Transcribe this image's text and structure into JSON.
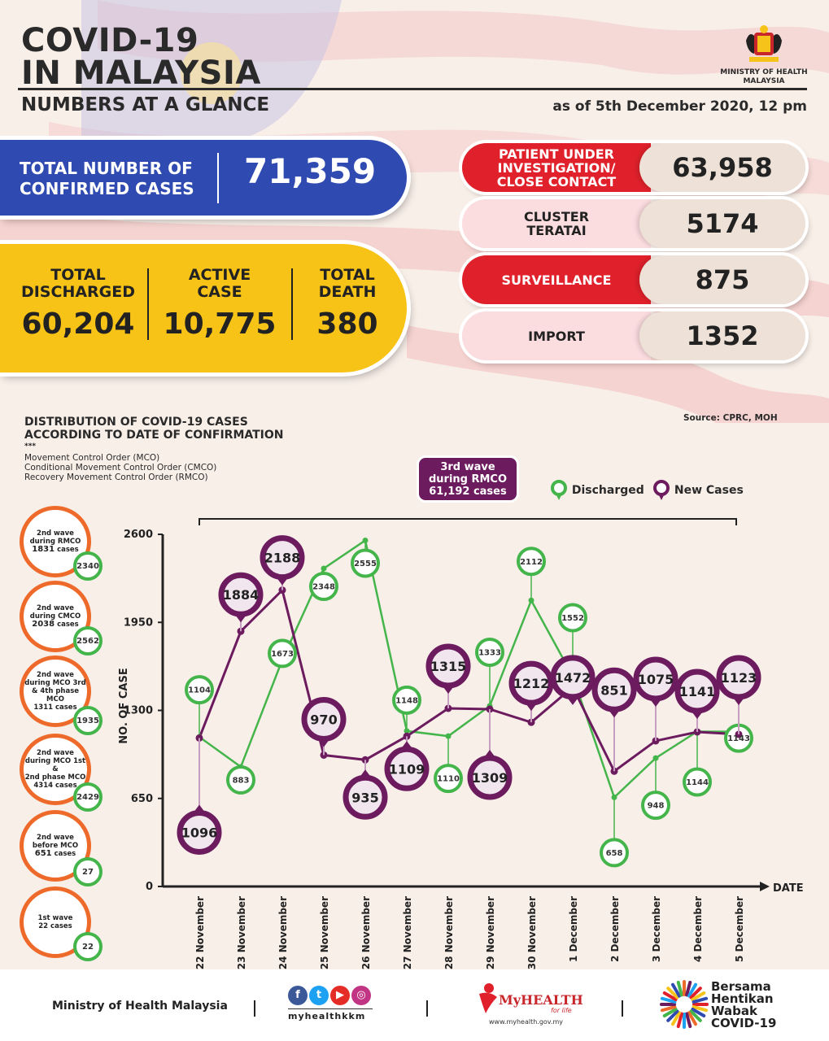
{
  "header": {
    "title_line1": "COVID-19",
    "title_line2": "IN MALAYSIA",
    "subtitle": "NUMBERS AT A GLANCE",
    "as_of": "as of 5th December 2020, 12 pm",
    "ministry_line1": "MINISTRY OF HEALTH",
    "ministry_line2": "MALAYSIA"
  },
  "totals": {
    "confirmed_label_1": "TOTAL NUMBER OF",
    "confirmed_label_2": "CONFIRMED CASES",
    "confirmed_value": "71,359",
    "discharged_label_1": "TOTAL",
    "discharged_label_2": "DISCHARGED",
    "discharged_value": "60,204",
    "active_label_1": "ACTIVE",
    "active_label_2": "CASE",
    "active_value": "10,775",
    "death_label_1": "TOTAL",
    "death_label_2": "DEATH",
    "death_value": "380"
  },
  "categories_panel": [
    {
      "label_1": "PATIENT UNDER",
      "label_2": "INVESTIGATION/",
      "label_3": "CLOSE CONTACT",
      "value": "63,958",
      "color": "#e0212b"
    },
    {
      "label_1": "CLUSTER",
      "label_2": "TERATAI",
      "label_3": "",
      "value": "5174",
      "color": "#fbdcdf"
    },
    {
      "label_1": "SURVEILLANCE",
      "label_2": "",
      "label_3": "",
      "value": "875",
      "color": "#e0212b"
    },
    {
      "label_1": "IMPORT",
      "label_2": "",
      "label_3": "",
      "value": "1352",
      "color": "#fbdcdf"
    }
  ],
  "distribution": {
    "title_1": "DISTRIBUTION OF COVID-19 CASES",
    "title_2": "ACCORDING TO DATE OF CONFIRMATION",
    "dots": "***",
    "mco": "Movement Control Order (MCO)",
    "cmco": "Conditional Movement Control Order (CMCO)",
    "rmco": "Recovery Movement Control Order (RMCO)",
    "source": "Source: CPRC, MOH",
    "wave3_1": "3rd wave",
    "wave3_2": "during RMCO",
    "wave3_3": "61,192 cases",
    "legend_discharged": "Discharged",
    "legend_new": "New Cases"
  },
  "waves": [
    {
      "l1": "2nd wave",
      "l2": "during RMCO",
      "l3": "1831",
      "l4": "cases",
      "discharged": "2340"
    },
    {
      "l1": "2nd wave",
      "l2": "during CMCO",
      "l3": "2038",
      "l4": "cases",
      "discharged": "2562"
    },
    {
      "l1": "2nd wave",
      "l2": "during MCO 3rd",
      "l3": "& 4th phase MCO",
      "l4": "1311 cases",
      "discharged": "1935"
    },
    {
      "l1": "2nd wave",
      "l2": "during MCO 1st &",
      "l3": "2nd phase MCO",
      "l4": "4314 cases",
      "discharged": "2429"
    },
    {
      "l1": "2nd wave",
      "l2": "before MCO",
      "l3": "651",
      "l4": "cases",
      "discharged": "27"
    },
    {
      "l1": "1st wave",
      "l2": "22 cases",
      "l3": "",
      "l4": "",
      "discharged": "22"
    }
  ],
  "chart_data": {
    "type": "line",
    "title": "",
    "xlabel": "DATE",
    "ylabel": "NO. OF CASE",
    "ylim": [
      0,
      2600
    ],
    "yticks": [
      0,
      650,
      1300,
      1950,
      2600
    ],
    "categories": [
      "22 November",
      "23 November",
      "24 November",
      "25 November",
      "26 November",
      "27 November",
      "28 November",
      "29 November",
      "30 November",
      "1 December",
      "2 December",
      "3 December",
      "4 December",
      "5 December"
    ],
    "series": [
      {
        "name": "Discharged",
        "color": "#44b54a",
        "values": [
          1104,
          883,
          1673,
          2348,
          2555,
          1148,
          1110,
          1333,
          2112,
          1552,
          658,
          948,
          1144,
          1143
        ]
      },
      {
        "name": "New Cases",
        "color": "#6b1b5e",
        "values": [
          1096,
          1884,
          2188,
          970,
          935,
          1109,
          1315,
          1309,
          1212,
          1472,
          851,
          1075,
          1141,
          1123
        ]
      }
    ]
  },
  "footer": {
    "ministry": "Ministry of Health Malaysia",
    "handle": "myhealthkkm",
    "myhealth": "MyHEALTH",
    "myhealth_tag": "for life",
    "myhealth_url": "www.myhealth.gov.my",
    "bersama_1": "Bersama",
    "bersama_2": "Hentikan",
    "bersama_3": "Wabak",
    "bersama_4": "COVID-19"
  }
}
